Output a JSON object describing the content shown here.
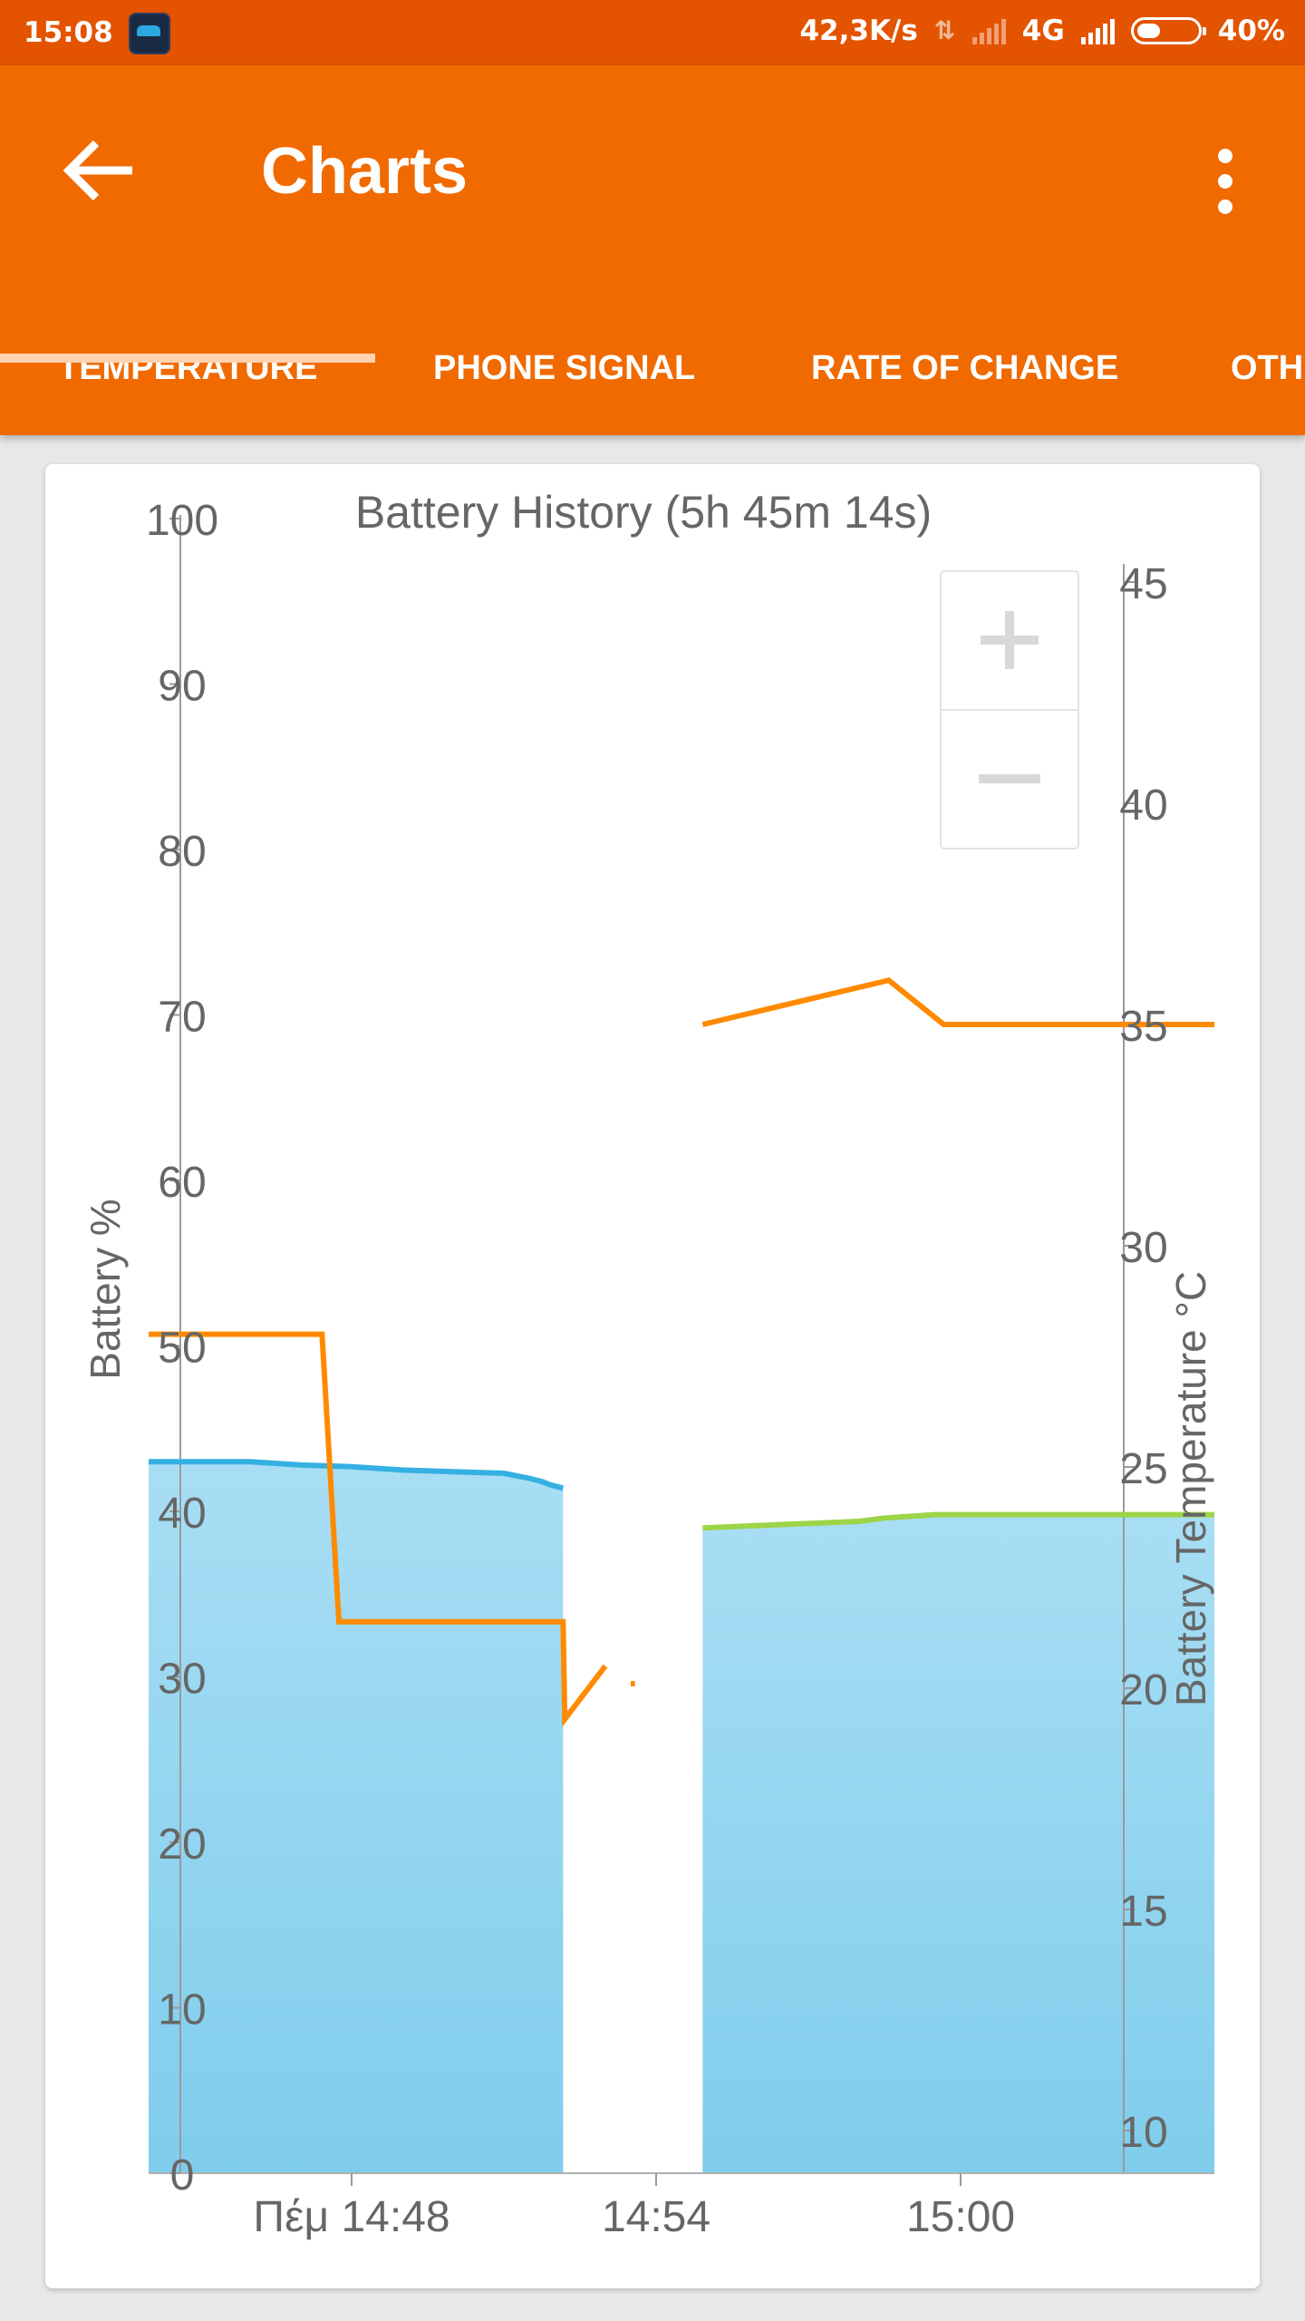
{
  "status_bar": {
    "time": "15:08",
    "network_speed": "42,3K/s",
    "network_type": "4G",
    "battery_percent": "40%",
    "battery_level": 0.4
  },
  "app_bar": {
    "title": "Charts",
    "back_icon": "arrow-back-icon",
    "menu_icon": "more-vert-icon"
  },
  "tabs": [
    {
      "label": "TEMPERATURE",
      "selected": true
    },
    {
      "label": "PHONE SIGNAL",
      "selected": false
    },
    {
      "label": "RATE OF CHANGE",
      "selected": false
    },
    {
      "label": "OTHER",
      "selected": false
    }
  ],
  "zoom": {
    "plus_icon": "zoom-in-icon",
    "minus_icon": "zoom-out-icon"
  },
  "colors": {
    "status_bar": "#e35300",
    "app_bar": "#f06a00",
    "tab_indicator": "#ffd2b0",
    "battery_line_discharging": "#35b0e2",
    "battery_line_charging": "#9dd448",
    "battery_fill_top": "#a8def4",
    "battery_fill_bottom": "#7fcdec",
    "temperature_line": "#ff8a00"
  },
  "chart_data": {
    "type": "area",
    "title": "Battery History (5h 45m 14s)",
    "ylabel": "Battery %",
    "y2label": "Battery Temperature °C",
    "ylim": [
      0,
      100
    ],
    "y2lim": [
      8,
      47
    ],
    "yticks": [
      "0",
      "10",
      "20",
      "30",
      "40",
      "50",
      "60",
      "70",
      "80",
      "90",
      "100"
    ],
    "y2ticks": [
      "10",
      "15",
      "20",
      "25",
      "30",
      "35",
      "40",
      "45"
    ],
    "xticks": [
      "Πέμ 14:48",
      "14:54",
      "15:00"
    ],
    "xlim": [
      "14:44",
      "15:05"
    ],
    "series": [
      {
        "name": "Battery %",
        "kind": "area",
        "segments": [
          {
            "state": "discharging",
            "points": [
              [
                "14:44:00",
                43.0
              ],
              [
                "14:46:00",
                43.0
              ],
              [
                "14:47:00",
                42.8
              ],
              [
                "14:48:00",
                42.7
              ],
              [
                "14:49:00",
                42.5
              ],
              [
                "14:50:00",
                42.4
              ],
              [
                "14:51:00",
                42.3
              ],
              [
                "14:51:30",
                42.0
              ],
              [
                "14:51:45",
                41.8
              ],
              [
                "14:51:55",
                41.6
              ],
              [
                "14:52:10",
                41.4
              ]
            ]
          },
          {
            "state": "charging",
            "points": [
              [
                "14:54:55",
                39.0
              ],
              [
                "14:58:00",
                39.4
              ],
              [
                "14:58:30",
                39.6
              ],
              [
                "14:59:30",
                39.8
              ],
              [
                "15:01:30",
                39.8
              ],
              [
                "15:05:00",
                39.8
              ]
            ]
          }
        ]
      },
      {
        "name": "Battery Temperature °C",
        "kind": "line",
        "axis": "right",
        "segments": [
          {
            "points": [
              [
                "14:44:00",
                28.0
              ],
              [
                "14:47:25",
                28.0
              ],
              [
                "14:47:45",
                21.5
              ],
              [
                "14:52:10",
                21.5
              ],
              [
                "14:52:12",
                19.3
              ],
              [
                "14:53:00",
                20.5
              ]
            ]
          },
          {
            "points": [
              [
                "14:53:30",
                20.1
              ],
              [
                "14:53:35",
                20.1
              ]
            ]
          },
          {
            "points": [
              [
                "14:54:55",
                35.0
              ],
              [
                "14:58:35",
                36.0
              ],
              [
                "14:59:40",
                35.0
              ],
              [
                "15:05:00",
                35.0
              ]
            ]
          }
        ]
      }
    ],
    "grid": false,
    "legend": "none"
  }
}
